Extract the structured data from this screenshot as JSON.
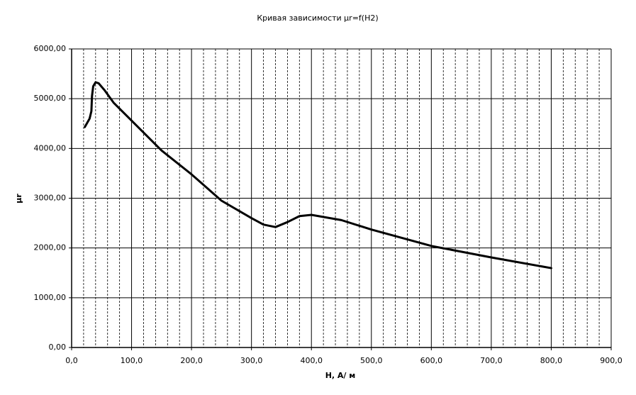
{
  "chart_data": {
    "type": "line",
    "title": "Кривая зависимости μr=f(H2)",
    "x_label": "H, A/ м",
    "y_label": "μr",
    "x": [
      22,
      30,
      33,
      34,
      36,
      40,
      45,
      55,
      70,
      100,
      150,
      200,
      250,
      300,
      320,
      340,
      360,
      380,
      400,
      450,
      500,
      600,
      700,
      800
    ],
    "series": [
      {
        "name": "μr",
        "color": "#000000",
        "values": [
          4430,
          4600,
          4750,
          5050,
          5250,
          5330,
          5310,
          5170,
          4920,
          4560,
          3960,
          3480,
          2950,
          2600,
          2470,
          2420,
          2520,
          2640,
          2665,
          2560,
          2370,
          2040,
          1810,
          1595
        ]
      }
    ],
    "xlim": [
      0,
      900
    ],
    "ylim": [
      0,
      6000
    ],
    "xticks": [
      {
        "value": 0,
        "label": "0,0"
      },
      {
        "value": 100,
        "label": "100,0"
      },
      {
        "value": 200,
        "label": "200,0"
      },
      {
        "value": 300,
        "label": "300,0"
      },
      {
        "value": 400,
        "label": "400,0"
      },
      {
        "value": 500,
        "label": "500,0"
      },
      {
        "value": 600,
        "label": "600,0"
      },
      {
        "value": 700,
        "label": "700,0"
      },
      {
        "value": 800,
        "label": "800,0"
      },
      {
        "value": 900,
        "label": "900,0"
      }
    ],
    "yticks": [
      {
        "value": 0,
        "label": "0,00"
      },
      {
        "value": 1000,
        "label": "1000,00"
      },
      {
        "value": 2000,
        "label": "2000,00"
      },
      {
        "value": 3000,
        "label": "3000,00"
      },
      {
        "value": 4000,
        "label": "4000,00"
      },
      {
        "value": 5000,
        "label": "5000,00"
      },
      {
        "value": 6000,
        "label": "6000,00"
      }
    ],
    "grid": true,
    "minor_grid": true
  }
}
